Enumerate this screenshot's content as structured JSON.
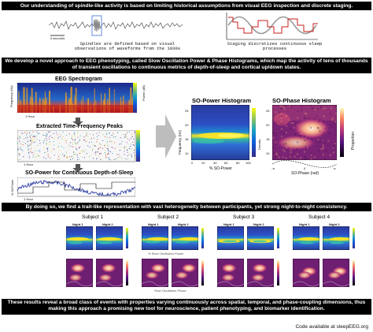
{
  "banners": {
    "top": "Our understanding of spindle-like activity is based on limiting historical assumptions from visual EEG inspection and discrete staging.",
    "develop": "We develop a novel approach to EEG phenotyping, called Slow Oscillation Power & Phase Histograms, which map the activity of tens of thousands of transient oscillations to continuous metrics of depth-of-sleep and cortical up/down states.",
    "finding": "By doing so, we find a trait-like representation with vast heterogeneity between participants, yet strong night-to-night consistency.",
    "results": "These results reveal a broad class of events with properties varying continuously across spatial, temporal, and phase-coupling dimensions, thus making this approach a promising new tool for neuroscience, patient phenotyping, and biomarker identification."
  },
  "top_panel": {
    "scale_label": "5 seconds",
    "caption_left": "Spindles are defined based on visual observations of waveforms from the 1930s",
    "caption_right": "Staging discretizes continuous sleep processes"
  },
  "left_panels": {
    "spectrogram_title": "EEG Spectrogram",
    "peaks_title": "Extracted Time-Frequency Peaks",
    "sopower_title": "SO-Power for Continuous Depth-of-Sleep",
    "freq_label": "Frequency (Hz)",
    "power_label": "Power (dB)",
    "hour_label": "1 Hour",
    "so_power_axis": "% SO Power"
  },
  "so_power_hist": {
    "title": "SO-Power Histogram",
    "ylabel": "Frequency (Hz)",
    "xlabel": "% SO-Power",
    "cbar_label": "Density",
    "yticks": [
      "10",
      "15",
      "20",
      "25"
    ],
    "xticks": [
      "0",
      "20",
      "40",
      "60",
      "80",
      "100"
    ]
  },
  "so_phase_hist": {
    "title": "SO-Phase Histogram",
    "ylabel": "Frequency (Hz)",
    "xlabel": "SO-Phase (rad)",
    "cbar_label": "Proportion",
    "yticks": [
      "10",
      "15",
      "20",
      "25"
    ],
    "xticks": [
      "-π",
      "0",
      "π"
    ]
  },
  "subjects": [
    {
      "name": "Subject 1",
      "night1": "Night 1",
      "night2": "Night 2"
    },
    {
      "name": "Subject 2",
      "night1": "Night 1",
      "night2": "Night 2"
    },
    {
      "name": "Subject 3",
      "night1": "Night 1",
      "night2": "Night 2"
    },
    {
      "name": "Subject 4",
      "night1": "Night 1",
      "night2": "Night 2"
    }
  ],
  "grid_labels": {
    "power_x": "% Slow Oscillation Power",
    "phase_x": "Slow Oscillation Phase"
  },
  "footer": {
    "code": "Code available at sleepEEG.org"
  },
  "colors": {
    "banner_bg": "#000000",
    "arrow": "#bdbdbd",
    "hist_power": "parula",
    "hist_phase": "magma"
  }
}
